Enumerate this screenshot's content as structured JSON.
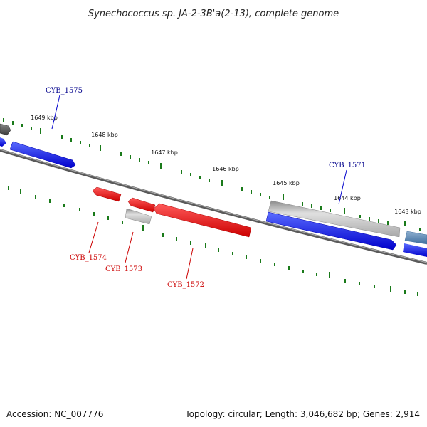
{
  "title": "Synechococcus sp. JA-2-3B'a(2-13), complete genome",
  "footer": {
    "accession": "Accession: NC_007776",
    "summary": "Topology: circular; Length: 3,046,682 bp; Genes: 2,914"
  },
  "ticks": [
    "1649 kbp",
    "1648 kbp",
    "1647 kbp",
    "1646 kbp",
    "1645 kbp",
    "1644 kbp",
    "1643 kbp"
  ],
  "genes": {
    "cyb_1575": "CYB_1575",
    "cyb_1571": "CYB_1571",
    "cyb_1574": "CYB_1574",
    "cyb_1573": "CYB_1573",
    "cyb_1572": "CYB_1572"
  },
  "colors": {
    "forward_cds": "#0000ee",
    "reverse_cds": "#ee0000",
    "other_feature": "#b0b0b0",
    "backbone": "#707070",
    "ticks": "#1a7a1a",
    "forward_label": "#00008b",
    "reverse_label": "#cc0000"
  }
}
